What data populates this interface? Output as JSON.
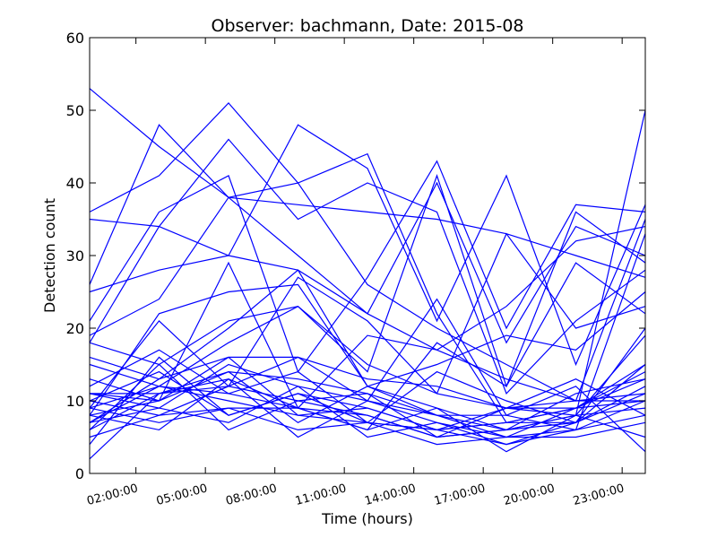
{
  "chart_data": {
    "type": "line",
    "title": "Observer: bachmann, Date: 2015-08",
    "xlabel": "Time (hours)",
    "ylabel": "Detection count",
    "x": [
      "00:00:00",
      "03:00:00",
      "06:00:00",
      "09:00:00",
      "12:00:00",
      "15:00:00",
      "18:00:00",
      "21:00:00",
      "24:00:00"
    ],
    "xlim": [
      "00:00:00",
      "24:00:00"
    ],
    "xticks": [
      "02:00:00",
      "05:00:00",
      "08:00:00",
      "11:00:00",
      "14:00:00",
      "17:00:00",
      "20:00:00",
      "23:00:00"
    ],
    "ylim": [
      0,
      60
    ],
    "yticks": [
      0,
      10,
      20,
      30,
      40,
      50,
      60
    ],
    "grid": false,
    "series_color": "#0000ff",
    "series": [
      {
        "values": [
          53,
          45,
          38,
          37,
          36,
          35,
          33,
          30,
          27
        ]
      },
      {
        "values": [
          36,
          41,
          51,
          40,
          44,
          22,
          7,
          9,
          10
        ]
      },
      {
        "values": [
          35,
          34,
          30,
          28,
          22,
          17,
          13,
          10,
          10
        ]
      },
      {
        "values": [
          26,
          48,
          38,
          40,
          26,
          20,
          15,
          10,
          35
        ]
      },
      {
        "values": [
          25,
          28,
          30,
          48,
          42,
          21,
          41,
          15,
          37
        ]
      },
      {
        "values": [
          21,
          36,
          41,
          14,
          27,
          43,
          20,
          37,
          36
        ]
      },
      {
        "values": [
          19,
          24,
          38,
          30,
          22,
          40,
          18,
          34,
          30
        ]
      },
      {
        "values": [
          18,
          34,
          46,
          35,
          40,
          36,
          11,
          21,
          28
        ]
      },
      {
        "values": [
          18,
          15,
          21,
          23,
          14,
          41,
          12,
          36,
          29
        ]
      },
      {
        "values": [
          16,
          13,
          20,
          28,
          12,
          15,
          19,
          17,
          25
        ]
      },
      {
        "values": [
          15,
          12,
          18,
          23,
          15,
          11,
          33,
          20,
          23
        ]
      },
      {
        "values": [
          13,
          10,
          16,
          16,
          13,
          12,
          9,
          8,
          50
        ]
      },
      {
        "values": [
          11,
          11,
          14,
          13,
          11,
          8,
          5,
          6,
          33
        ]
      },
      {
        "values": [
          11,
          9,
          15,
          12,
          10,
          7,
          5,
          9,
          15
        ]
      },
      {
        "values": [
          10,
          14,
          8,
          11,
          9,
          6,
          4,
          7,
          20
        ]
      },
      {
        "values": [
          10,
          8,
          12,
          10,
          8,
          5,
          6,
          8,
          19
        ]
      },
      {
        "values": [
          9,
          12,
          11,
          14,
          7,
          6,
          7,
          9,
          13
        ]
      },
      {
        "values": [
          9,
          7,
          9,
          9,
          8,
          5,
          6,
          7,
          11
        ]
      },
      {
        "values": [
          8,
          10,
          14,
          7,
          12,
          8,
          8,
          6,
          10
        ]
      },
      {
        "values": [
          8,
          6,
          13,
          9,
          6,
          9,
          3,
          8,
          9
        ]
      },
      {
        "values": [
          7,
          12,
          10,
          8,
          9,
          6,
          7,
          7,
          12
        ]
      },
      {
        "values": [
          7,
          9,
          7,
          12,
          5,
          7,
          4,
          6,
          8
        ]
      },
      {
        "values": [
          6,
          15,
          6,
          10,
          11,
          5,
          9,
          9,
          14
        ]
      },
      {
        "values": [
          5,
          8,
          9,
          6,
          7,
          4,
          5,
          5,
          7
        ]
      },
      {
        "values": [
          4,
          16,
          8,
          11,
          7,
          6,
          9,
          10,
          11
        ]
      },
      {
        "values": [
          2,
          11,
          13,
          5,
          10,
          8,
          6,
          8,
          5
        ]
      },
      {
        "values": [
          12,
          17,
          11,
          9,
          19,
          17,
          23,
          32,
          34
        ]
      },
      {
        "values": [
          11,
          10,
          29,
          9,
          6,
          18,
          12,
          29,
          22
        ]
      },
      {
        "values": [
          9,
          21,
          12,
          16,
          10,
          24,
          8,
          12,
          3
        ]
      },
      {
        "values": [
          7,
          13,
          16,
          8,
          7,
          14,
          10,
          7,
          15
        ]
      },
      {
        "values": [
          8,
          22,
          25,
          26,
          12,
          9,
          6,
          11,
          13
        ]
      },
      {
        "values": [
          6,
          11,
          12,
          27,
          21,
          11,
          9,
          13,
          8
        ]
      }
    ]
  }
}
